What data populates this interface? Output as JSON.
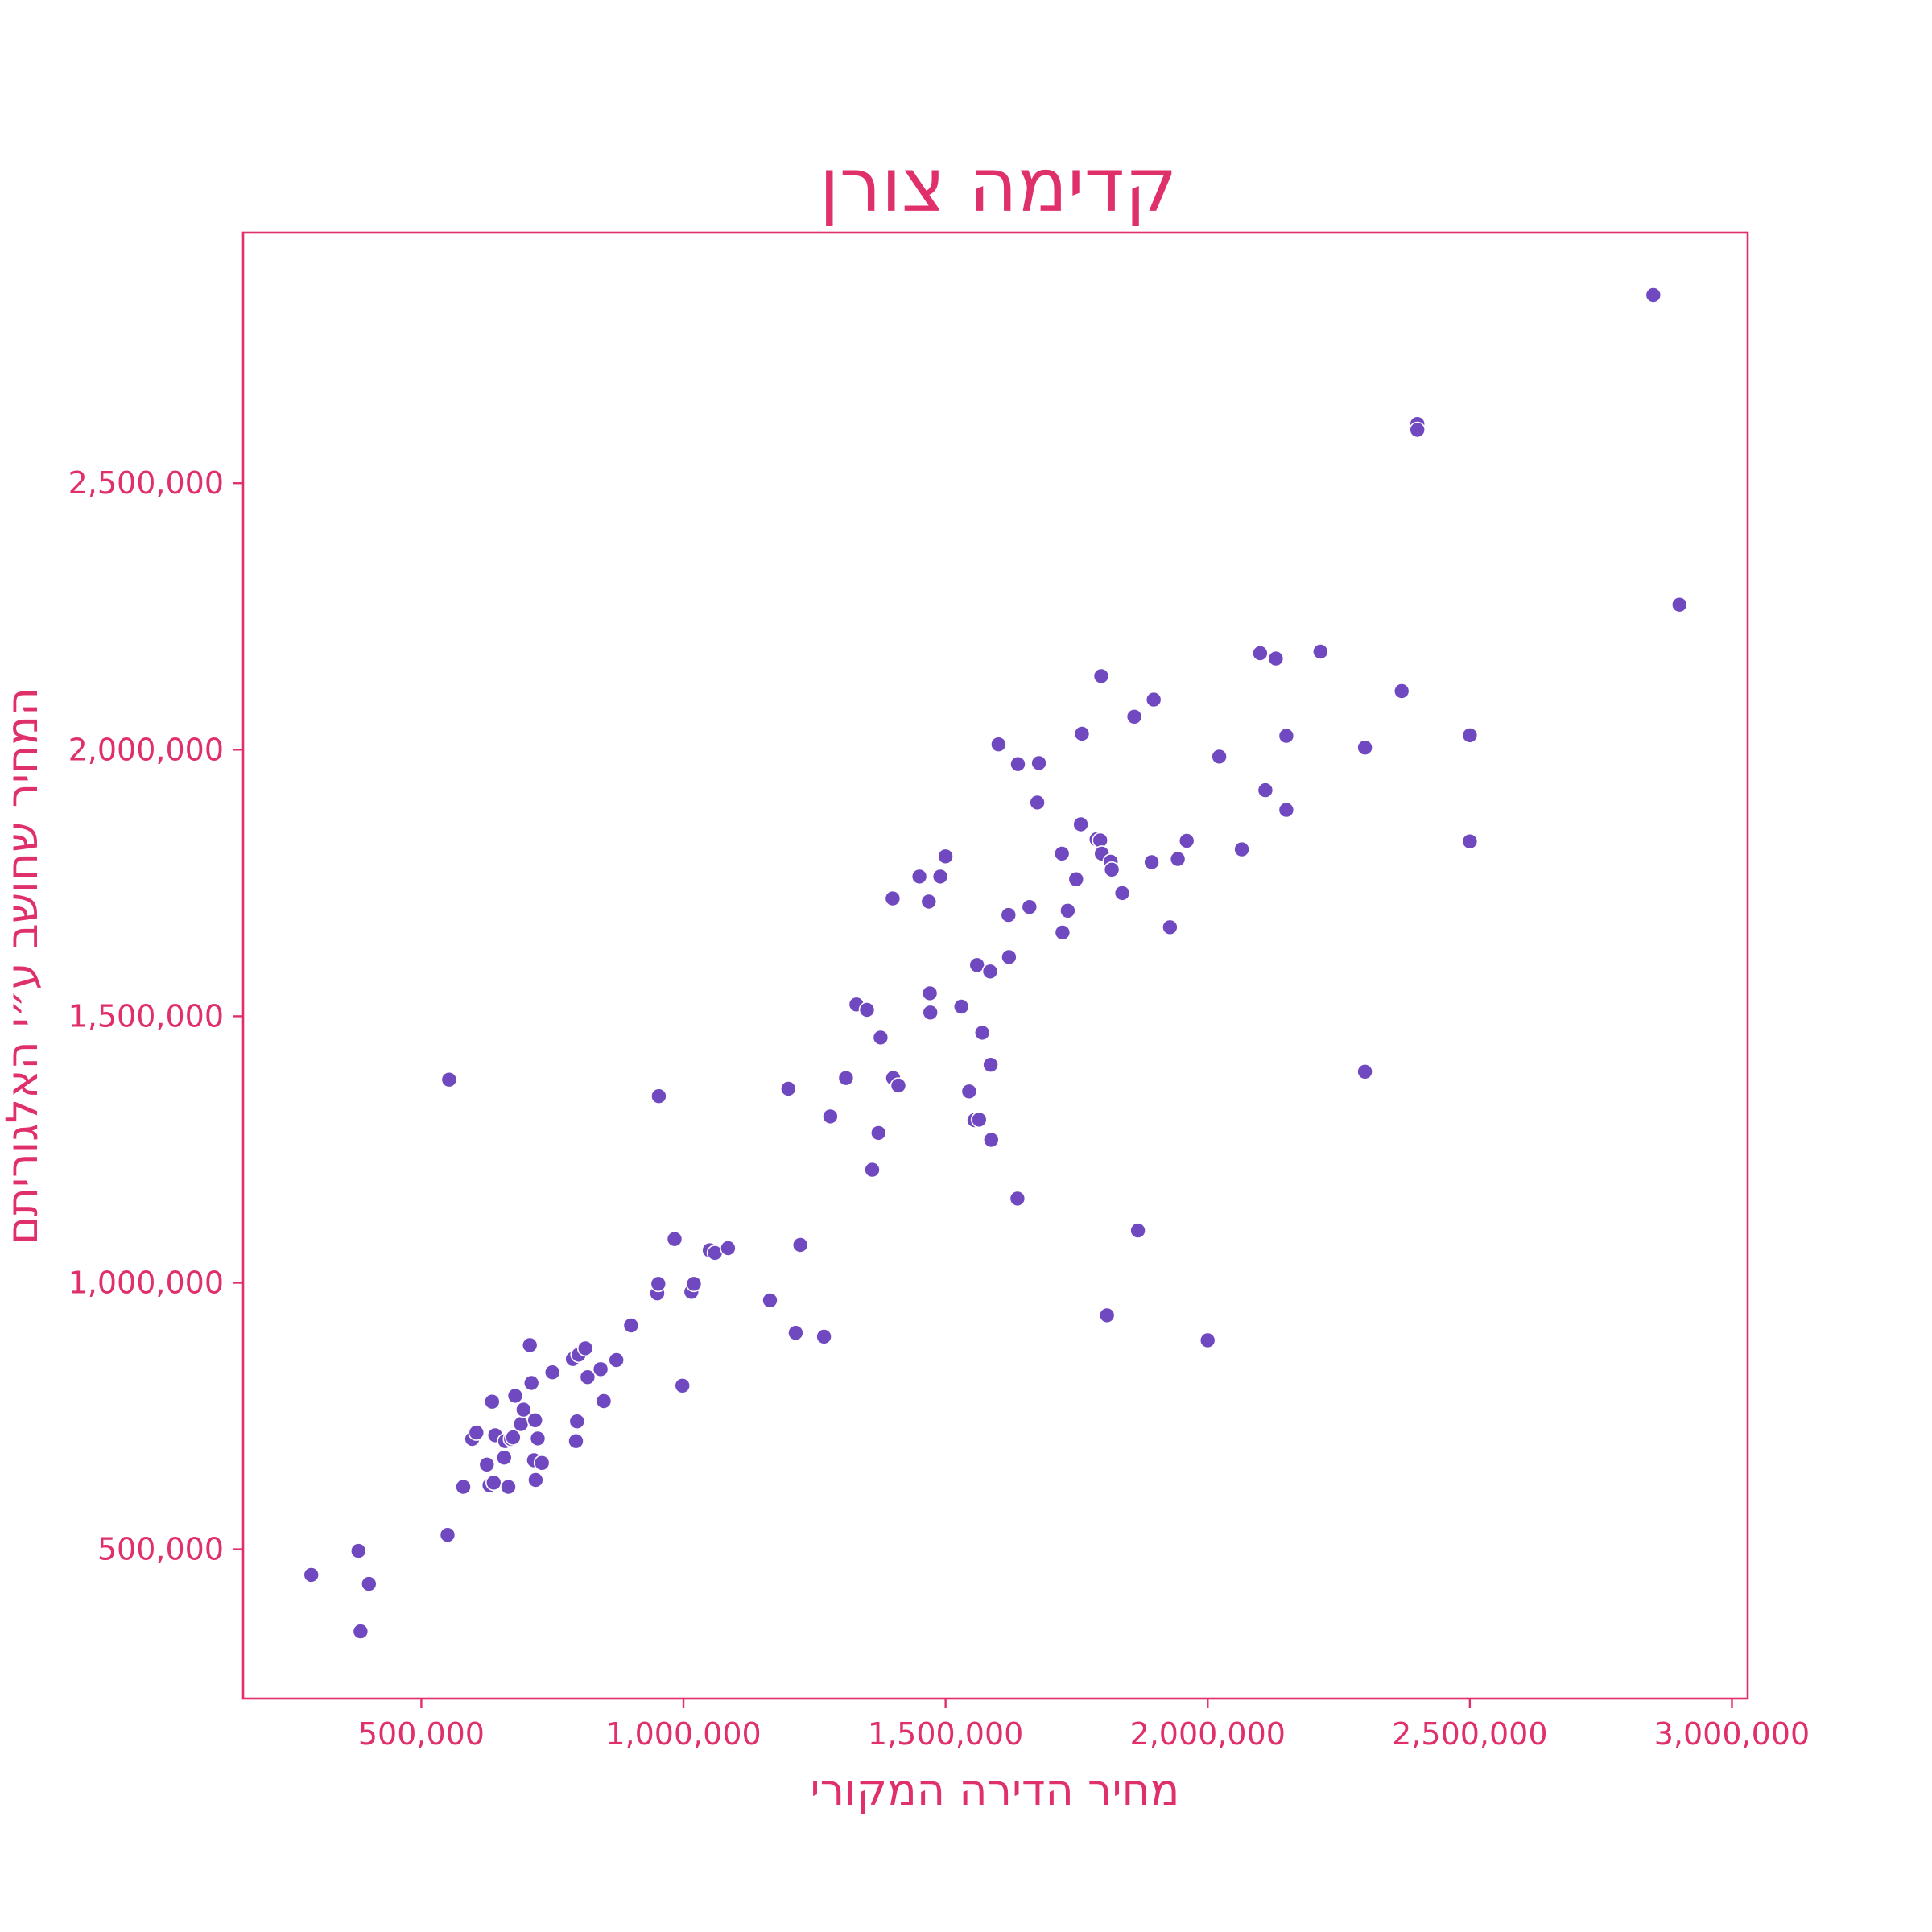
{
  "chart_data": {
    "type": "scatter",
    "title": "קדימה צורן",
    "xlabel": "מחיר הדירה המקורי",
    "ylabel": "המחיר שחושב ע״י האלגוריתם",
    "xlim": [
      160000,
      3030000
    ],
    "ylim": [
      220000,
      2970000
    ],
    "x_ticks": [
      500000,
      1000000,
      1500000,
      2000000,
      2500000,
      3000000
    ],
    "x_tick_labels": [
      "500,000",
      "1,000,000",
      "1,500,000",
      "2,000,000",
      "2,500,000",
      "3,000,000"
    ],
    "y_ticks": [
      500000,
      1000000,
      1500000,
      2000000,
      2500000
    ],
    "y_tick_labels": [
      "500,000",
      "1,000,000",
      "1,500,000",
      "2,000,000",
      "2,500,000"
    ],
    "grid": false,
    "legend": "none",
    "colors": {
      "text": "#E0306A",
      "axes": "#E0306A",
      "marker": "#7048C0",
      "marker_edge": "#ffffff"
    },
    "points": [
      [
        290000,
        452000
      ],
      [
        380000,
        497000
      ],
      [
        384000,
        346000
      ],
      [
        400000,
        435000
      ],
      [
        550000,
        527000
      ],
      [
        553000,
        1381000
      ],
      [
        580000,
        617000
      ],
      [
        597000,
        707000
      ],
      [
        605000,
        719000
      ],
      [
        625000,
        659000
      ],
      [
        630000,
        620000
      ],
      [
        635000,
        777000
      ],
      [
        638000,
        625000
      ],
      [
        641000,
        714000
      ],
      [
        658000,
        672000
      ],
      [
        660000,
        703000
      ],
      [
        666000,
        617000
      ],
      [
        671000,
        707000
      ],
      [
        675000,
        710000
      ],
      [
        679000,
        788000
      ],
      [
        690000,
        735000
      ],
      [
        695000,
        762000
      ],
      [
        707000,
        883000
      ],
      [
        710000,
        812000
      ],
      [
        715000,
        667000
      ],
      [
        717000,
        742000
      ],
      [
        718000,
        630000
      ],
      [
        722000,
        708000
      ],
      [
        730000,
        662000
      ],
      [
        750000,
        832000
      ],
      [
        789000,
        857000
      ],
      [
        795000,
        703000
      ],
      [
        797000,
        740000
      ],
      [
        800000,
        865000
      ],
      [
        813000,
        877000
      ],
      [
        817000,
        823000
      ],
      [
        842000,
        838000
      ],
      [
        848000,
        778000
      ],
      [
        872000,
        855000
      ],
      [
        900000,
        920000
      ],
      [
        950000,
        980000
      ],
      [
        952000,
        998000
      ],
      [
        953000,
        1350000
      ],
      [
        983000,
        1082000
      ],
      [
        998000,
        807000
      ],
      [
        1015000,
        983000
      ],
      [
        1020000,
        998000
      ],
      [
        1050000,
        1061000
      ],
      [
        1060000,
        1056000
      ],
      [
        1085000,
        1065000
      ],
      [
        1165000,
        967000
      ],
      [
        1200000,
        1364000
      ],
      [
        1214000,
        906000
      ],
      [
        1223000,
        1071000
      ],
      [
        1268000,
        899000
      ],
      [
        1280000,
        1312000
      ],
      [
        1310000,
        1384000
      ],
      [
        1330000,
        1522000
      ],
      [
        1350000,
        1512000
      ],
      [
        1360000,
        1212000
      ],
      [
        1372000,
        1281000
      ],
      [
        1376000,
        1460000
      ],
      [
        1399000,
        1721000
      ],
      [
        1400000,
        1384000
      ],
      [
        1410000,
        1370000
      ],
      [
        1450000,
        1762000
      ],
      [
        1468000,
        1715000
      ],
      [
        1470000,
        1543000
      ],
      [
        1471000,
        1507000
      ],
      [
        1490000,
        1762000
      ],
      [
        1500000,
        1800000
      ],
      [
        1530000,
        1518000
      ],
      [
        1545000,
        1359000
      ],
      [
        1555000,
        1305000
      ],
      [
        1560000,
        1596000
      ],
      [
        1564000,
        1306000
      ],
      [
        1570000,
        1469000
      ],
      [
        1585000,
        1584000
      ],
      [
        1586000,
        1409000
      ],
      [
        1587000,
        1268000
      ],
      [
        1601000,
        2010000
      ],
      [
        1620000,
        1690000
      ],
      [
        1621000,
        1611000
      ],
      [
        1637000,
        1158000
      ],
      [
        1638000,
        1973000
      ],
      [
        1660000,
        1705000
      ],
      [
        1675000,
        1901000
      ],
      [
        1678000,
        1975000
      ],
      [
        1722000,
        1805000
      ],
      [
        1723000,
        1657000
      ],
      [
        1733000,
        1698000
      ],
      [
        1749000,
        1757000
      ],
      [
        1758000,
        1860000
      ],
      [
        1760000,
        2030000
      ],
      [
        1788000,
        1832000
      ],
      [
        1795000,
        1830000
      ],
      [
        1797000,
        2138000
      ],
      [
        1798000,
        1805000
      ],
      [
        1808000,
        939000
      ],
      [
        1815000,
        1790000
      ],
      [
        1817000,
        1775000
      ],
      [
        1837000,
        1731000
      ],
      [
        1860000,
        2062000
      ],
      [
        1867000,
        1098000
      ],
      [
        1893000,
        1789000
      ],
      [
        1897000,
        2094000
      ],
      [
        1928000,
        1667000
      ],
      [
        1943000,
        1795000
      ],
      [
        1960000,
        1829000
      ],
      [
        2000000,
        892000
      ],
      [
        2022000,
        1987000
      ],
      [
        2065000,
        1813000
      ],
      [
        2100000,
        2181000
      ],
      [
        2110000,
        1924000
      ],
      [
        2130000,
        2171000
      ],
      [
        2150000,
        2026000
      ],
      [
        2150000,
        1887000
      ],
      [
        2215000,
        2184000
      ],
      [
        2300000,
        2004000
      ],
      [
        2300000,
        1396000
      ],
      [
        2370000,
        2110000
      ],
      [
        2400000,
        2611000
      ],
      [
        2400000,
        2600000
      ],
      [
        2500000,
        2027000
      ],
      [
        2500000,
        1828000
      ],
      [
        2850000,
        2853000
      ],
      [
        2900000,
        2272000
      ]
    ]
  }
}
